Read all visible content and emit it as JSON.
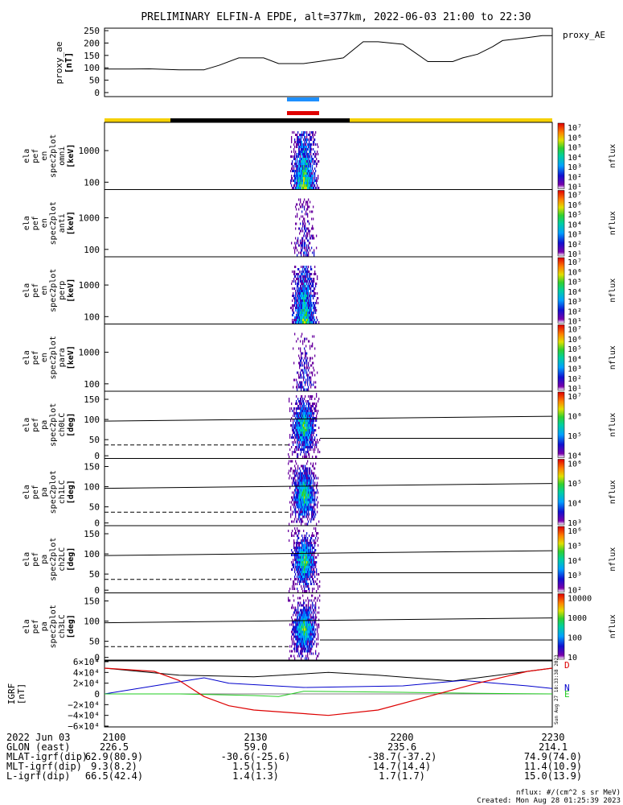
{
  "title": "PRELIMINARY ELFIN-A EPDE, alt=377km, 2022-06-03 21:00 to 22:30",
  "colors": {
    "sunlight": "#f5d000",
    "eclipse": "#000000",
    "science_blue": "#1e90ff",
    "science_red": "#e00000",
    "bx": "#000000",
    "by": "#0000cc",
    "bz": "#22cc22",
    "bt": "#dd0000"
  },
  "ae_panel": {
    "legend": "proxy_AE",
    "ylabel_lines": [
      "proxy_ae",
      "[nT]"
    ],
    "yticks": [
      "250",
      "200",
      "150",
      "100",
      "50",
      "0"
    ]
  },
  "spectrogram_panels": [
    {
      "ylabel_lines": [
        "ela",
        "pef",
        "en",
        "spec2plot",
        "omni",
        "[keV]"
      ],
      "yticks": [
        "1000",
        "100"
      ],
      "cb_ticks": [
        "10⁷",
        "10⁶",
        "10⁵",
        "10⁴",
        "10³",
        "10²",
        "10¹"
      ],
      "cb_label": "nflux"
    },
    {
      "ylabel_lines": [
        "ela",
        "pef",
        "en",
        "spec2plot",
        "anti",
        "[keV]"
      ],
      "yticks": [
        "1000",
        "100"
      ],
      "cb_ticks": [
        "10⁷",
        "10⁶",
        "10⁵",
        "10⁴",
        "10³",
        "10²",
        "10¹"
      ],
      "cb_label": "nflux"
    },
    {
      "ylabel_lines": [
        "ela",
        "pef",
        "en",
        "spec2plot",
        "perp",
        "[keV]"
      ],
      "yticks": [
        "1000",
        "100"
      ],
      "cb_ticks": [
        "10⁷",
        "10⁶",
        "10⁵",
        "10⁴",
        "10³",
        "10²",
        "10¹"
      ],
      "cb_label": "nflux"
    },
    {
      "ylabel_lines": [
        "ela",
        "pef",
        "en",
        "spec2plot",
        "para",
        "[keV]"
      ],
      "yticks": [
        "1000",
        "100"
      ],
      "cb_ticks": [
        "10⁷",
        "10⁶",
        "10⁵",
        "10⁴",
        "10³",
        "10²",
        "10¹"
      ],
      "cb_label": "nflux"
    },
    {
      "ylabel_lines": [
        "ela",
        "pef",
        "pa",
        "spec2plot",
        "ch0LC",
        "[deg]"
      ],
      "yticks": [
        "150",
        "100",
        "50",
        "0"
      ],
      "cb_ticks": [
        "10⁷",
        "10⁶",
        "10⁵",
        "10⁴"
      ],
      "cb_label": "nflux"
    },
    {
      "ylabel_lines": [
        "ela",
        "pef",
        "pa",
        "spec2plot",
        "ch1LC",
        "[deg]"
      ],
      "yticks": [
        "150",
        "100",
        "50",
        "0"
      ],
      "cb_ticks": [
        "10⁶",
        "10⁵",
        "10⁴",
        "10³"
      ],
      "cb_label": "nflux"
    },
    {
      "ylabel_lines": [
        "ela",
        "pef",
        "pa",
        "spec2plot",
        "ch2LC",
        "[deg]"
      ],
      "yticks": [
        "150",
        "100",
        "50",
        "0"
      ],
      "cb_ticks": [
        "10⁶",
        "10⁵",
        "10⁴",
        "10³",
        "10²"
      ],
      "cb_label": "nflux"
    },
    {
      "ylabel_lines": [
        "ela",
        "pef",
        "pa",
        "spec2plot",
        "ch3LC",
        "[deg]"
      ],
      "yticks": [
        "150",
        "100",
        "50",
        "0"
      ],
      "cb_ticks": [
        "10000",
        "1000",
        "100",
        "10"
      ],
      "cb_label": "nflux"
    }
  ],
  "igrf_panel": {
    "ylabel_lines": [
      "IGRF",
      "[nT]"
    ],
    "yticks": [
      "6×10⁴",
      "4×10⁴",
      "2×10⁴",
      "0",
      "−2×10⁴",
      "−4×10⁴",
      "−6×10⁴"
    ],
    "component_labels": [
      "D",
      "N",
      "E"
    ],
    "side_stamp": "Sun Aug 27 18:33:38 2023"
  },
  "footer": {
    "date_label": "2022 Jun 03",
    "time_ticks": [
      "2100",
      "2130",
      "2200",
      "2230"
    ],
    "rows": [
      {
        "label": "GLON (east)",
        "values": [
          "226.5",
          "59.0",
          "235.6",
          "214.1"
        ]
      },
      {
        "label": "MLAT-igrf(dip)",
        "values": [
          "62.9(80.9)",
          "-30.6(-25.6)",
          "-38.7(-37.2)",
          "74.9(74.0)"
        ]
      },
      {
        "label": "MLT-igrf(dip)",
        "values": [
          "9.3(8.2)",
          "1.5(1.5)",
          "14.7(14.4)",
          "11.4(10.9)"
        ]
      },
      {
        "label": "L-igrf(dip)",
        "values": [
          "66.5(42.4)",
          "1.4(1.3)",
          "1.7(1.7)",
          "15.0(13.9)"
        ]
      }
    ],
    "units_note": "nflux: #/(cm^2 s sr MeV)",
    "created": "Created: Mon Aug 28 01:25:39 2023"
  },
  "chart_data": [
    {
      "type": "line",
      "title": "PRELIMINARY ELFIN-A EPDE, alt=377km, 2022-06-03 21:00 to 22:30",
      "xlabel": "",
      "ylabel": "proxy_ae [nT]",
      "ylim": [
        0,
        260
      ],
      "xlim": [
        "21:00",
        "22:30"
      ],
      "series": [
        {
          "name": "proxy_AE",
          "x_minutes": [
            0,
            5,
            9,
            15,
            20,
            23,
            27,
            32,
            35,
            40,
            43,
            48,
            52,
            55,
            60,
            65,
            70,
            72,
            75,
            78,
            80,
            85,
            88,
            90
          ],
          "values": [
            95,
            95,
            96,
            92,
            92,
            110,
            140,
            140,
            117,
            117,
            125,
            140,
            205,
            205,
            195,
            125,
            125,
            140,
            155,
            185,
            210,
            222,
            230,
            230
          ]
        }
      ]
    },
    {
      "type": "line",
      "ylabel": "IGRF [nT]",
      "ylim": [
        -60000,
        60000
      ],
      "series": [
        {
          "name": "D",
          "x_minutes": [
            0,
            10,
            15,
            20,
            25,
            30,
            45,
            55,
            65,
            75,
            85,
            90
          ],
          "values": [
            48000,
            42000,
            25000,
            -5000,
            -22000,
            -30000,
            -40000,
            -30000,
            -5000,
            20000,
            42000,
            48000
          ]
        },
        {
          "name": "N",
          "x_minutes": [
            0,
            10,
            20,
            25,
            40,
            60,
            72,
            85,
            90
          ],
          "values": [
            0,
            15000,
            30000,
            20000,
            12000,
            15000,
            25000,
            15000,
            10000
          ]
        },
        {
          "name": "E",
          "x_minutes": [
            0,
            15,
            30,
            35,
            40,
            60,
            75,
            90
          ],
          "values": [
            0,
            0,
            -3000,
            -5000,
            5000,
            3000,
            1000,
            0
          ]
        }
      ]
    }
  ]
}
